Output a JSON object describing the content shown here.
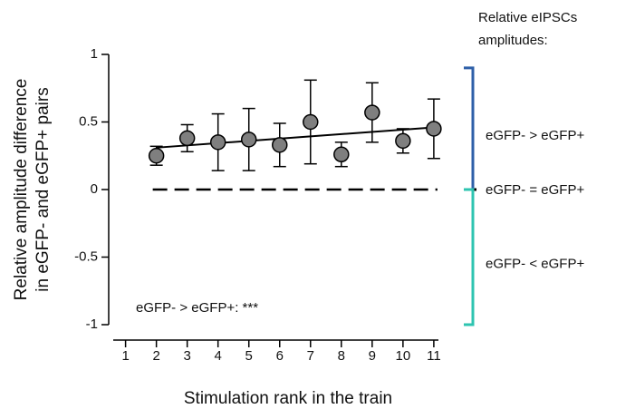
{
  "chart_data": {
    "type": "errorbar-scatter",
    "ylabel": [
      "Relative amplitude difference",
      "in eGFP- and eGFP+ pairs"
    ],
    "xlabel": "Stimulation rank in the train",
    "x": [
      2,
      3,
      4,
      5,
      6,
      7,
      8,
      9,
      10,
      11
    ],
    "series": [
      {
        "color": "#7f7f7f",
        "values": [
          0.25,
          0.38,
          0.35,
          0.37,
          0.33,
          0.5,
          0.26,
          0.57,
          0.36,
          0.45
        ],
        "errors": [
          0.07,
          0.1,
          0.21,
          0.23,
          0.16,
          0.31,
          0.09,
          0.22,
          0.09,
          0.22
        ]
      }
    ],
    "trend": {
      "x": [
        2,
        11
      ],
      "values": [
        0.31,
        0.46
      ]
    },
    "reference_line": {
      "x": [
        2,
        11
      ],
      "value": 0
    },
    "xlim": [
      0.6,
      11.15
    ],
    "xticks": [
      1,
      2,
      3,
      4,
      5,
      6,
      7,
      8,
      9,
      10,
      11
    ],
    "ylim": [
      -1,
      1
    ],
    "yticks": [
      1,
      0.5,
      0,
      -0.5,
      -1
    ],
    "annotation": "eGFP- > eGFP+: ***",
    "legend_title": [
      "Relative eIPSCs",
      "amplitudes:"
    ],
    "regions": [
      {
        "label": "eGFP- > eGFP+",
        "color": "#2e5fa8",
        "range": [
          0,
          0.9
        ]
      },
      {
        "label": "eGFP- = eGFP+",
        "color": "#000000",
        "range": [
          0,
          0
        ]
      },
      {
        "label": "eGFP- < eGFP+",
        "color": "#2ec4b0",
        "range": [
          -1,
          0
        ]
      }
    ]
  }
}
